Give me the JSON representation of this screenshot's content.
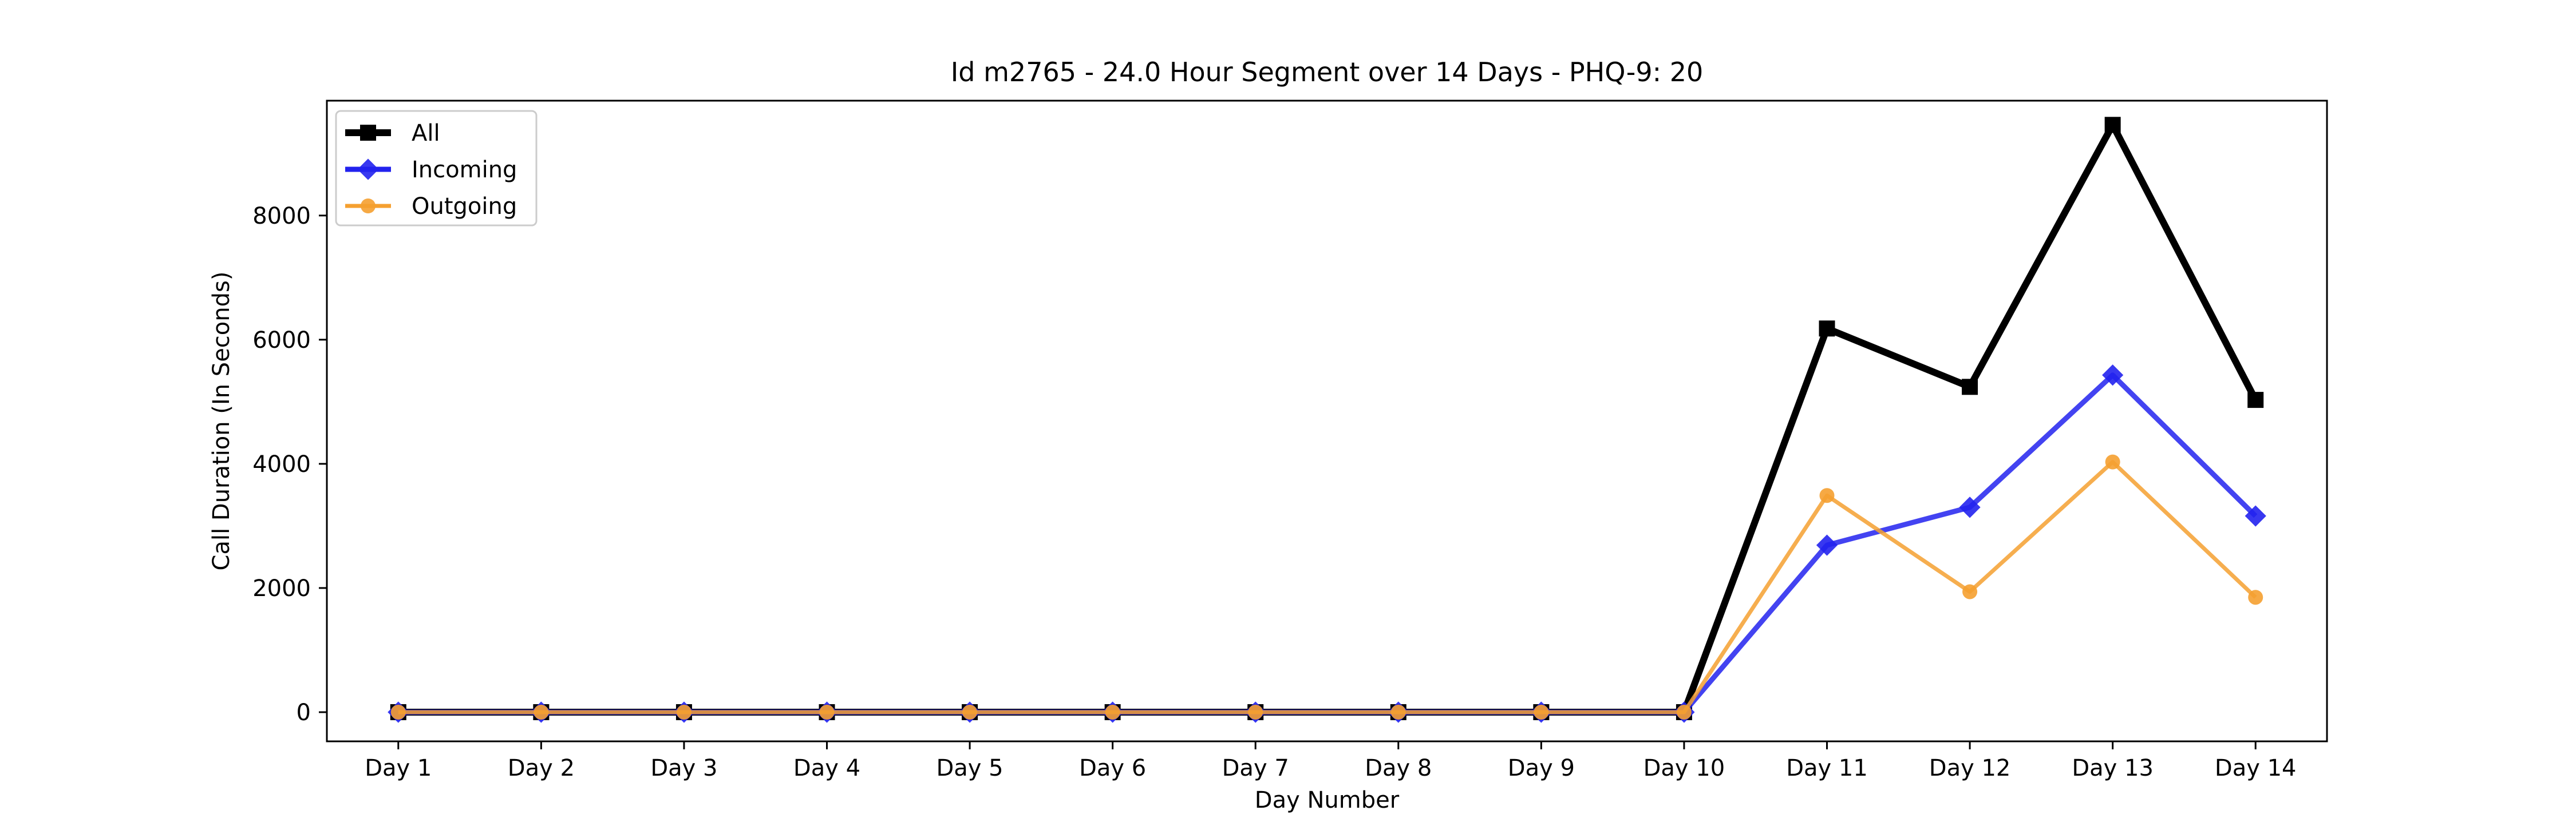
{
  "chart_data": {
    "type": "line",
    "title": "Id m2765 - 24.0 Hour Segment over 14 Days - PHQ-9: 20",
    "xlabel": "Day Number",
    "ylabel": "Call Duration (In Seconds)",
    "categories": [
      "Day 1",
      "Day 2",
      "Day 3",
      "Day 4",
      "Day 5",
      "Day 6",
      "Day 7",
      "Day 8",
      "Day 9",
      "Day 10",
      "Day 11",
      "Day 12",
      "Day 13",
      "Day 14"
    ],
    "ylim": [
      -470,
      9850
    ],
    "yticks": [
      0,
      2000,
      4000,
      6000,
      8000
    ],
    "grid": false,
    "legend_position": "upper-left",
    "series": [
      {
        "name": "All",
        "color": "#000000",
        "marker": "square",
        "values": [
          0,
          0,
          0,
          0,
          0,
          0,
          0,
          0,
          0,
          0,
          6180,
          5240,
          9460,
          5030
        ]
      },
      {
        "name": "Incoming",
        "color": "#2222ee",
        "marker": "diamond",
        "values": [
          0,
          0,
          0,
          0,
          0,
          0,
          0,
          0,
          0,
          0,
          2690,
          3300,
          5430,
          3160
        ]
      },
      {
        "name": "Outgoing",
        "color": "#f5a030",
        "marker": "circle",
        "values": [
          0,
          0,
          0,
          0,
          0,
          0,
          0,
          0,
          0,
          0,
          3490,
          1940,
          4030,
          1850
        ]
      }
    ]
  }
}
